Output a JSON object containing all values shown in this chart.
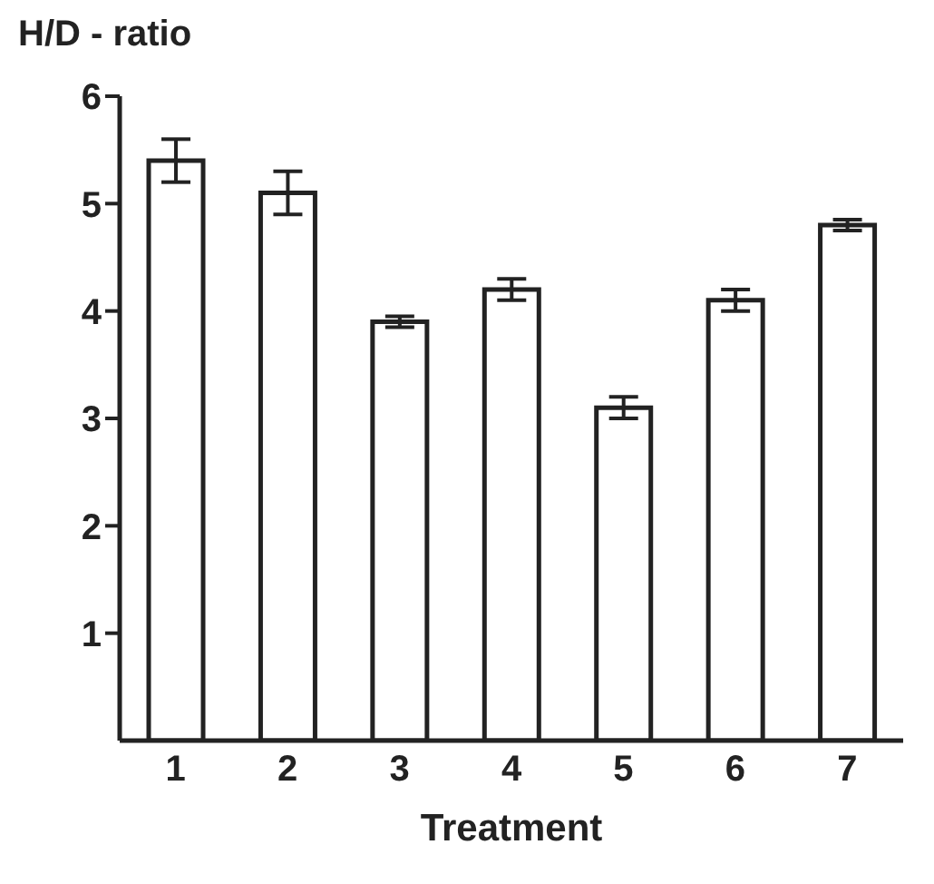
{
  "chart_data": {
    "type": "bar",
    "ylabel": "H/D - ratio",
    "xlabel": "Treatment",
    "categories": [
      "1",
      "2",
      "3",
      "4",
      "5",
      "6",
      "7"
    ],
    "values": [
      5.4,
      5.1,
      3.9,
      4.2,
      3.1,
      4.1,
      4.8
    ],
    "errors": [
      0.2,
      0.2,
      0.05,
      0.1,
      0.1,
      0.1,
      0.05
    ],
    "color": "#ffffff",
    "ylim": [
      0,
      6
    ],
    "yticks": [
      1,
      2,
      3,
      4,
      5,
      6
    ],
    "grid": false,
    "legend": false
  }
}
